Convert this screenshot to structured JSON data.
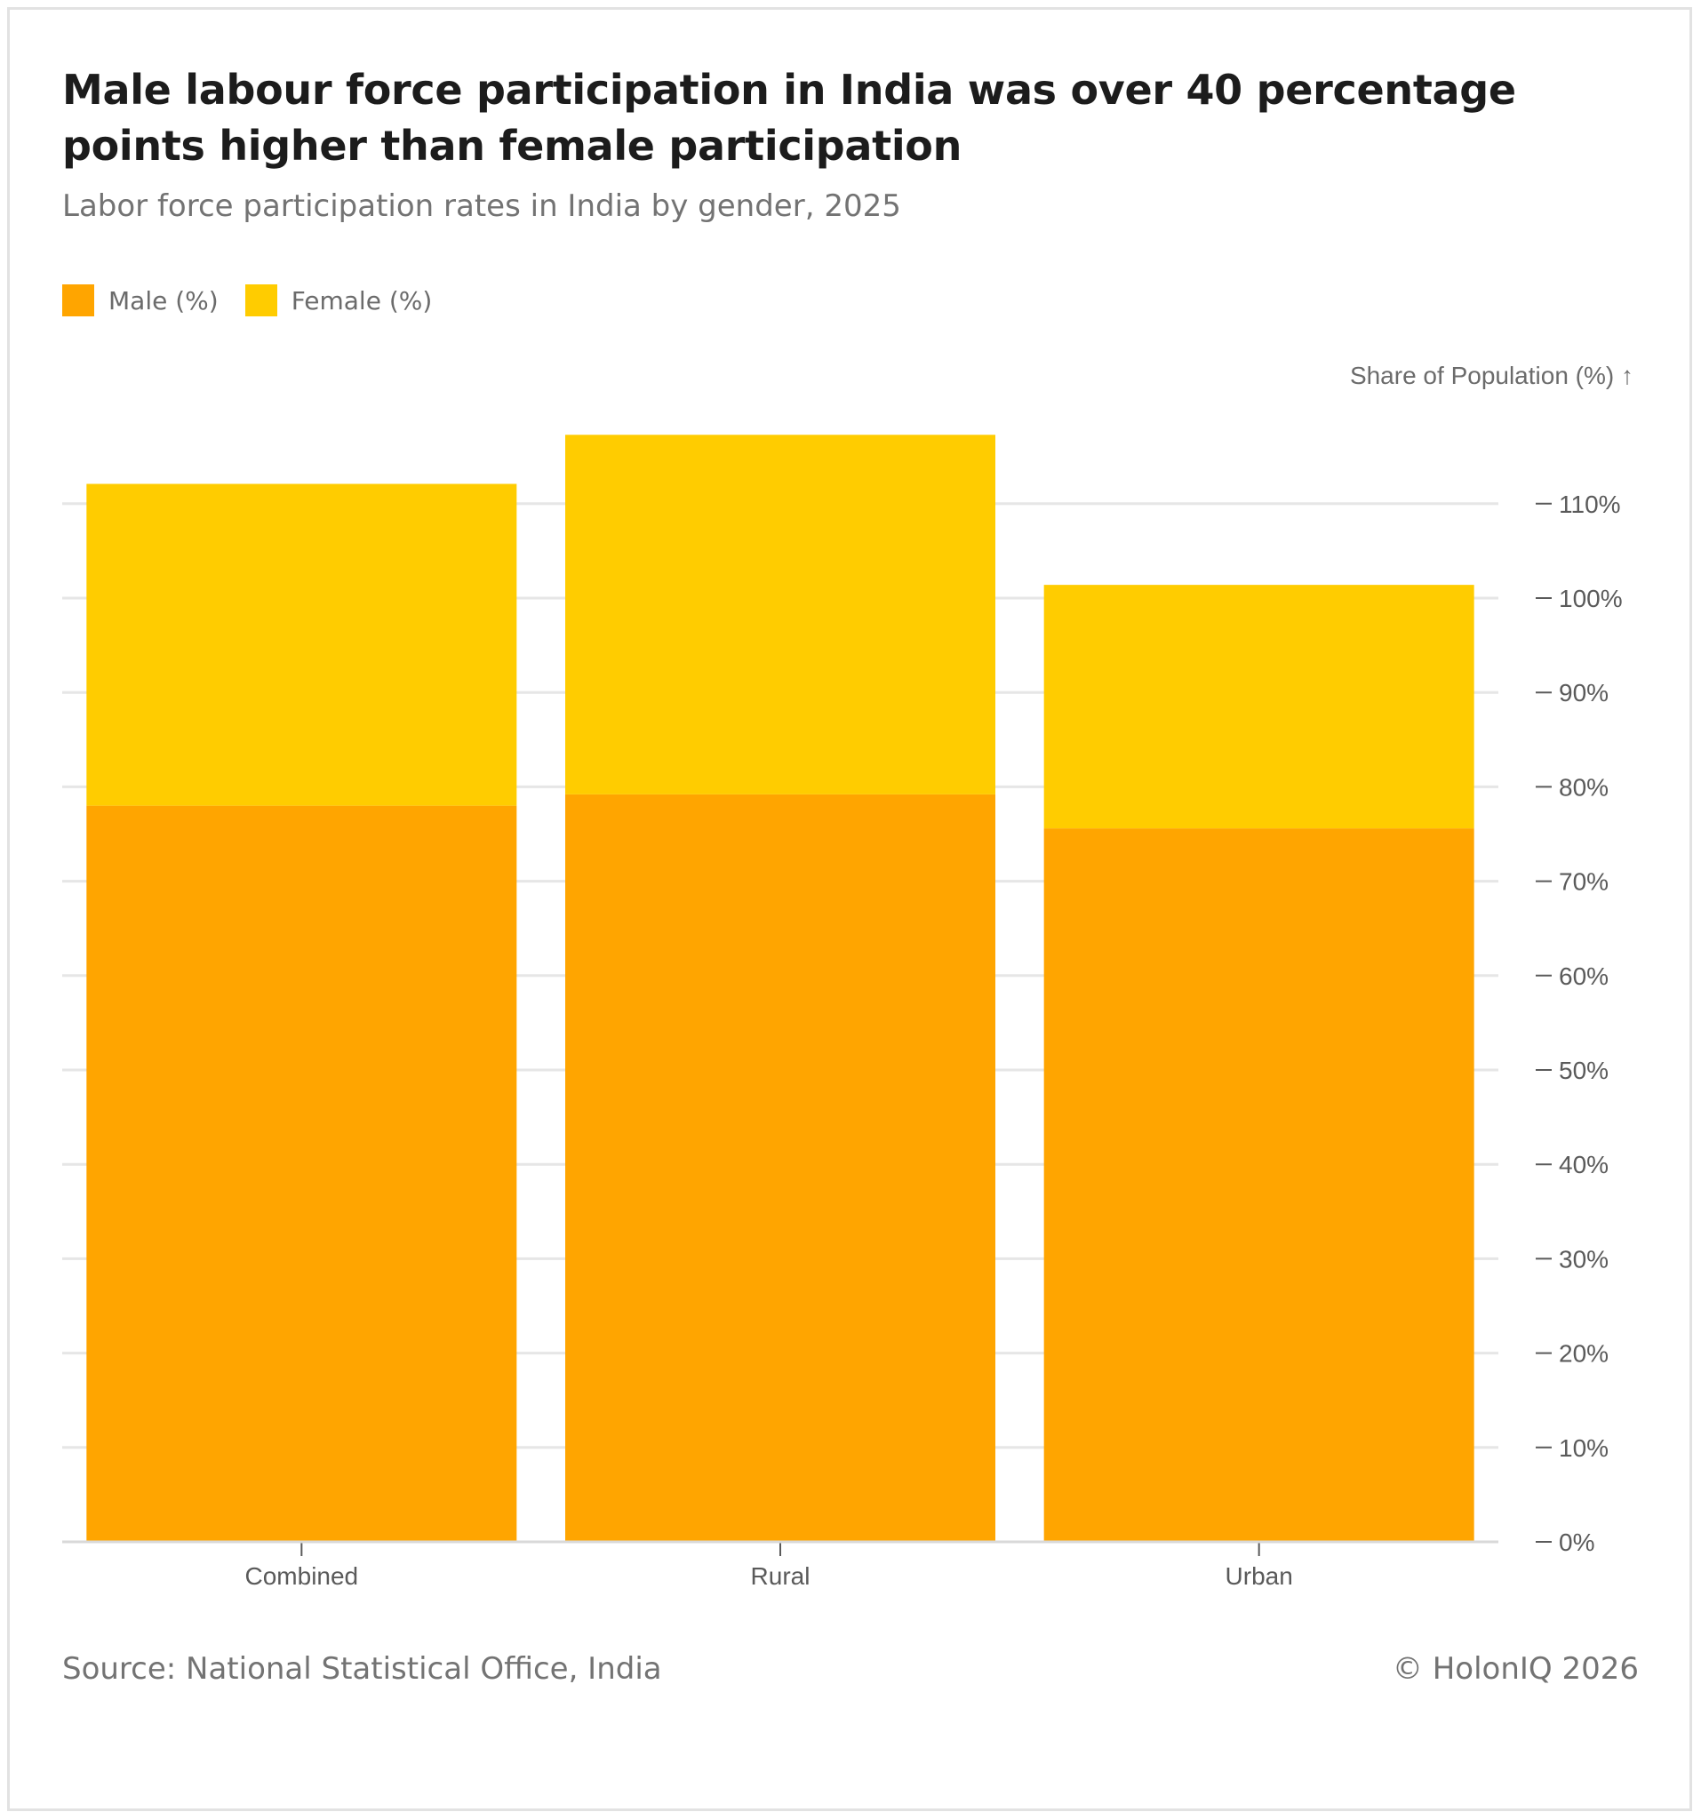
{
  "header": {
    "title": "Male labour force participation in India was over 40 percentage points higher than female participation",
    "subtitle": "Labor force participation rates in India by gender, 2025"
  },
  "legend": {
    "items": [
      {
        "label": "Male (%)",
        "color": "#FFA500"
      },
      {
        "label": "Female (%)",
        "color": "#FFCC00"
      }
    ]
  },
  "footer": {
    "source": "Source: National Statistical Office, India",
    "credit": "© HolonIQ 2026"
  },
  "chart_data": {
    "type": "bar",
    "stacked": true,
    "title": "Male labour force participation in India was over 40 percentage points higher than female participation",
    "subtitle": "Labor force participation rates in India by gender, 2025",
    "xlabel": "",
    "ylabel": "Share of Population (%) ↑",
    "categories": [
      "Combined",
      "Rural",
      "Urban"
    ],
    "series": [
      {
        "name": "Male (%)",
        "color": "#FFA500",
        "values": [
          78.0,
          79.2,
          75.6
        ]
      },
      {
        "name": "Female (%)",
        "color": "#FFCC00",
        "values": [
          34.1,
          38.1,
          25.8
        ]
      }
    ],
    "ylim": [
      0,
      120
    ],
    "yticks": [
      0,
      10,
      20,
      30,
      40,
      50,
      60,
      70,
      80,
      90,
      100,
      110
    ],
    "ytick_labels": [
      "0%",
      "10%",
      "20%",
      "30%",
      "40%",
      "50%",
      "60%",
      "70%",
      "80%",
      "90%",
      "100%",
      "110%"
    ],
    "grid": true,
    "y_axis_side": "right",
    "legend_position": "top-left"
  }
}
